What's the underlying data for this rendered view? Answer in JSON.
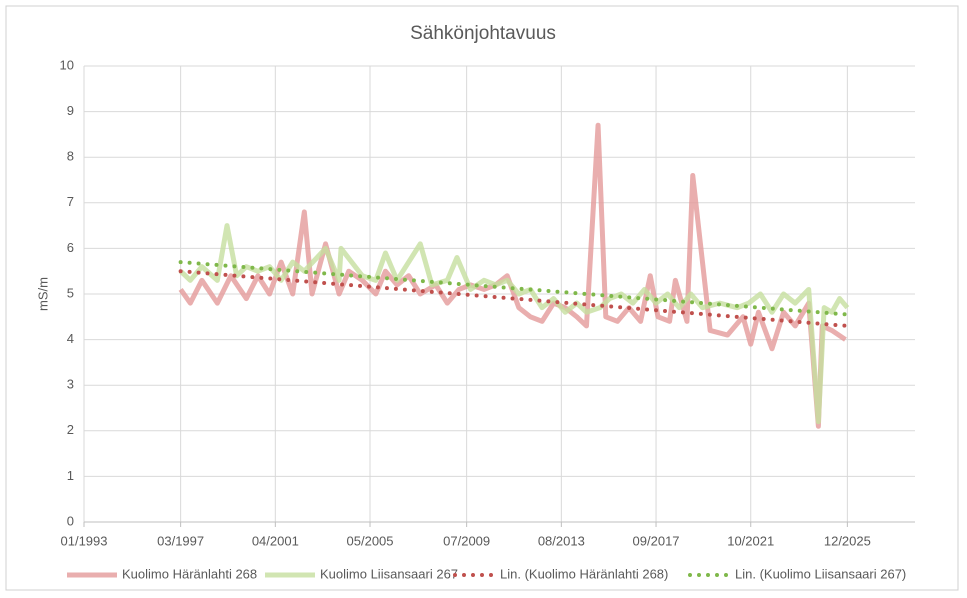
{
  "chart_data": {
    "type": "line",
    "title": "Sähkönjohtavuus",
    "y_label": "mS/m",
    "xlim": [
      "1993-01",
      "2028-11"
    ],
    "xticks": [
      {
        "value": "1993-01",
        "label": "01/1993"
      },
      {
        "value": "1997-03",
        "label": "03/1997"
      },
      {
        "value": "2001-04",
        "label": "04/2001"
      },
      {
        "value": "2005-05",
        "label": "05/2005"
      },
      {
        "value": "2009-07",
        "label": "07/2009"
      },
      {
        "value": "2013-08",
        "label": "08/2013"
      },
      {
        "value": "2017-09",
        "label": "09/2017"
      },
      {
        "value": "2021-10",
        "label": "10/2021"
      },
      {
        "value": "2025-12",
        "label": "12/2025"
      }
    ],
    "ylim": [
      0,
      10
    ],
    "yticks": [
      0,
      1,
      2,
      3,
      4,
      5,
      6,
      7,
      8,
      9,
      10
    ],
    "grid": true,
    "legend": "bottom",
    "series": [
      {
        "name": "Kuolimo Häränlahti 268",
        "color": "#e39a9a",
        "style": "solid",
        "x": [
          "1997-03",
          "1997-08",
          "1998-02",
          "1998-10",
          "1999-05",
          "2000-01",
          "2000-07",
          "2001-01",
          "2001-07",
          "2002-01",
          "2002-07",
          "2002-11",
          "2003-06",
          "2004-01",
          "2004-06",
          "2005-01",
          "2005-08",
          "2006-01",
          "2006-07",
          "2007-01",
          "2007-07",
          "2008-03",
          "2008-09",
          "2009-03",
          "2009-09",
          "2010-04",
          "2010-10",
          "2011-04",
          "2011-10",
          "2012-04",
          "2012-10",
          "2013-04",
          "2013-10",
          "2014-04",
          "2014-09",
          "2015-03",
          "2015-07",
          "2016-01",
          "2016-07",
          "2017-01",
          "2017-06",
          "2017-10",
          "2018-04",
          "2018-07",
          "2019-01",
          "2019-04",
          "2020-01",
          "2020-10",
          "2021-06",
          "2021-10",
          "2022-02",
          "2022-09",
          "2023-03",
          "2023-09",
          "2024-04",
          "2024-09",
          "2024-11",
          "2025-04",
          "2025-11"
        ],
        "values": [
          5.1,
          4.8,
          5.3,
          4.8,
          5.4,
          4.9,
          5.4,
          5.0,
          5.7,
          5.0,
          6.8,
          5.0,
          6.1,
          5.0,
          5.5,
          5.3,
          5.0,
          5.5,
          5.2,
          5.4,
          5.0,
          5.2,
          4.8,
          5.1,
          5.2,
          5.1,
          5.2,
          5.4,
          4.7,
          4.5,
          4.4,
          4.8,
          4.7,
          4.5,
          4.3,
          8.7,
          4.5,
          4.4,
          4.7,
          4.4,
          5.4,
          4.5,
          4.4,
          5.3,
          4.4,
          7.6,
          4.2,
          4.1,
          4.5,
          3.9,
          4.6,
          3.8,
          4.6,
          4.3,
          4.8,
          2.1,
          4.3,
          4.2,
          4.0
        ]
      },
      {
        "name": "Kuolimo Liisansaari 267",
        "color": "#c5de9f",
        "style": "solid",
        "x": [
          "1997-03",
          "1997-08",
          "1998-02",
          "1998-10",
          "1999-03",
          "1999-08",
          "2000-01",
          "2000-07",
          "2001-01",
          "2001-07",
          "2002-01",
          "2002-07",
          "2003-06",
          "2004-01",
          "2004-02",
          "2005-01",
          "2005-08",
          "2006-01",
          "2006-07",
          "2007-07",
          "2008-01",
          "2008-09",
          "2009-02",
          "2009-09",
          "2010-04",
          "2010-10",
          "2011-04",
          "2011-10",
          "2012-04",
          "2012-10",
          "2013-04",
          "2013-10",
          "2014-04",
          "2014-09",
          "2015-04",
          "2015-09",
          "2016-03",
          "2016-09",
          "2017-03",
          "2017-09",
          "2018-03",
          "2018-09",
          "2019-03",
          "2019-09",
          "2020-06",
          "2021-03",
          "2021-09",
          "2022-03",
          "2022-09",
          "2023-03",
          "2023-09",
          "2024-04",
          "2024-09",
          "2024-12",
          "2025-04",
          "2025-08",
          "2025-12"
        ],
        "values": [
          5.5,
          5.3,
          5.6,
          5.3,
          6.5,
          5.4,
          5.6,
          5.5,
          5.6,
          5.3,
          5.7,
          5.5,
          6.0,
          5.3,
          6.0,
          5.4,
          5.3,
          5.9,
          5.3,
          6.1,
          5.2,
          5.3,
          5.8,
          5.1,
          5.3,
          5.2,
          5.3,
          5.0,
          5.1,
          4.7,
          4.9,
          4.6,
          4.8,
          4.6,
          4.7,
          4.9,
          5.0,
          4.8,
          5.1,
          4.8,
          5.0,
          4.7,
          5.0,
          4.7,
          4.8,
          4.7,
          4.8,
          5.0,
          4.6,
          5.0,
          4.8,
          5.1,
          2.2,
          4.7,
          4.6,
          4.9,
          4.7
        ]
      },
      {
        "name": "Lin. (Kuolimo Häränlahti 268)",
        "color": "#c0504d",
        "style": "dotted",
        "x": [
          "1997-03",
          "2025-12"
        ],
        "values": [
          5.5,
          4.3
        ]
      },
      {
        "name": "Lin. (Kuolimo Liisansaari 267)",
        "color": "#7fb84a",
        "style": "dotted",
        "x": [
          "1997-03",
          "2025-12"
        ],
        "values": [
          5.7,
          4.55
        ]
      }
    ]
  }
}
